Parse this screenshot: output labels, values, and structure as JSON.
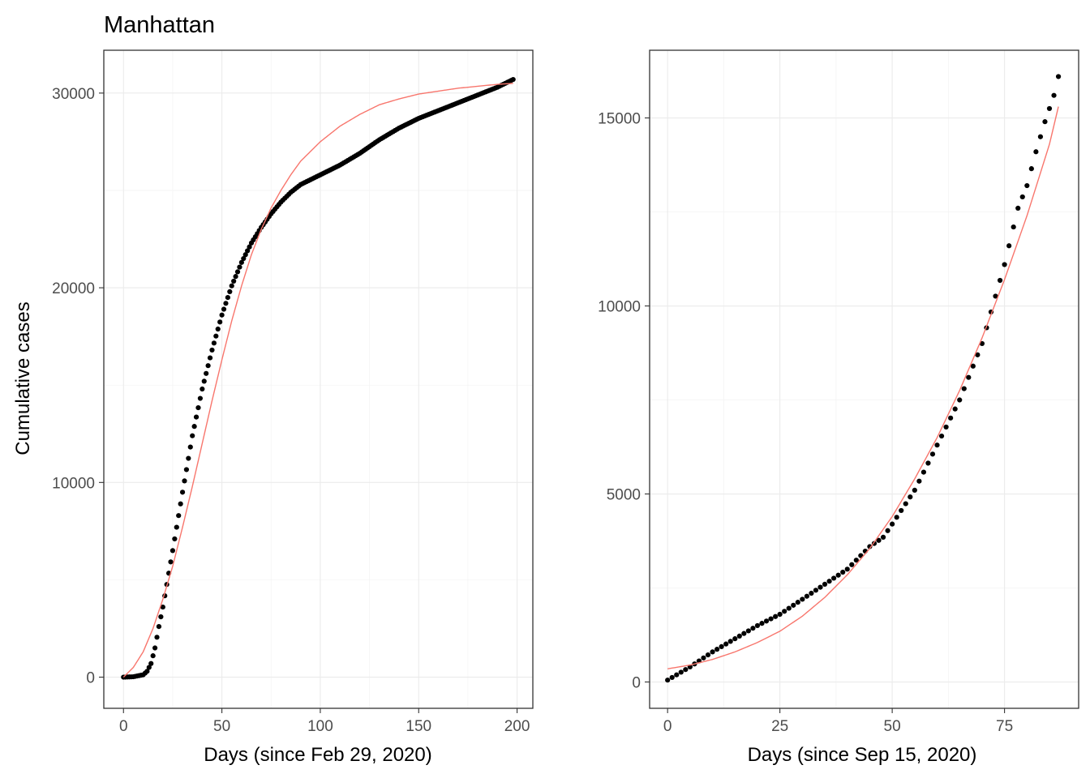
{
  "title": "Manhattan",
  "ylabel": "Cumulative cases",
  "colors": {
    "points": "#000000",
    "fit": "#f8766d"
  },
  "chart_data": [
    {
      "type": "scatter",
      "panel": "left",
      "xlabel": "Days (since Feb 29, 2020)",
      "ylabel": "Cumulative cases",
      "xlim": [
        -10,
        208
      ],
      "ylim": [
        -1600,
        32200
      ],
      "xticks": [
        0,
        50,
        100,
        150,
        200
      ],
      "yticks": [
        0,
        10000,
        20000,
        30000
      ],
      "xtick_labels": [
        "0",
        "50",
        "100",
        "150",
        "200"
      ],
      "ytick_labels": [
        "0",
        "10000",
        "20000",
        "30000"
      ],
      "x_range": [
        0,
        198
      ],
      "points_anchor": [
        [
          0,
          0
        ],
        [
          5,
          20
        ],
        [
          10,
          120
        ],
        [
          12,
          300
        ],
        [
          14,
          700
        ],
        [
          16,
          1500
        ],
        [
          18,
          2600
        ],
        [
          20,
          3600
        ],
        [
          25,
          6500
        ],
        [
          30,
          9500
        ],
        [
          35,
          12400
        ],
        [
          40,
          14800
        ],
        [
          45,
          16800
        ],
        [
          50,
          18600
        ],
        [
          55,
          20100
        ],
        [
          60,
          21300
        ],
        [
          65,
          22300
        ],
        [
          70,
          23100
        ],
        [
          75,
          23800
        ],
        [
          80,
          24400
        ],
        [
          85,
          24900
        ],
        [
          90,
          25300
        ],
        [
          100,
          25800
        ],
        [
          110,
          26300
        ],
        [
          120,
          26900
        ],
        [
          130,
          27600
        ],
        [
          140,
          28200
        ],
        [
          150,
          28700
        ],
        [
          160,
          29100
        ],
        [
          170,
          29500
        ],
        [
          180,
          29900
        ],
        [
          190,
          30300
        ],
        [
          198,
          30700
        ]
      ],
      "fit_anchor": [
        [
          0,
          0
        ],
        [
          5,
          500
        ],
        [
          10,
          1300
        ],
        [
          15,
          2500
        ],
        [
          20,
          4000
        ],
        [
          25,
          5700
        ],
        [
          30,
          7700
        ],
        [
          35,
          9800
        ],
        [
          40,
          12000
        ],
        [
          45,
          14200
        ],
        [
          50,
          16300
        ],
        [
          55,
          18300
        ],
        [
          60,
          20100
        ],
        [
          65,
          21700
        ],
        [
          70,
          23000
        ],
        [
          75,
          24100
        ],
        [
          80,
          25000
        ],
        [
          85,
          25800
        ],
        [
          90,
          26500
        ],
        [
          100,
          27500
        ],
        [
          110,
          28300
        ],
        [
          120,
          28900
        ],
        [
          130,
          29400
        ],
        [
          140,
          29700
        ],
        [
          150,
          29950
        ],
        [
          160,
          30100
        ],
        [
          170,
          30250
        ],
        [
          180,
          30350
        ],
        [
          190,
          30450
        ],
        [
          198,
          30500
        ]
      ]
    },
    {
      "type": "scatter",
      "panel": "right",
      "xlabel": "Days (since Sep 15, 2020)",
      "ylabel": "",
      "xlim": [
        -4,
        91.5
      ],
      "ylim": [
        -700,
        16800
      ],
      "xticks": [
        0,
        25,
        50,
        75
      ],
      "yticks": [
        0,
        5000,
        10000,
        15000
      ],
      "xtick_labels": [
        "0",
        "25",
        "50",
        "75"
      ],
      "ytick_labels": [
        "0",
        "5000",
        "10000",
        "15000"
      ],
      "x_range": [
        0,
        87
      ],
      "points_anchor": [
        [
          0,
          50
        ],
        [
          5,
          400
        ],
        [
          10,
          800
        ],
        [
          15,
          1150
        ],
        [
          20,
          1500
        ],
        [
          25,
          1800
        ],
        [
          30,
          2200
        ],
        [
          35,
          2600
        ],
        [
          40,
          3000
        ],
        [
          45,
          3600
        ],
        [
          48,
          3850
        ],
        [
          50,
          4200
        ],
        [
          55,
          5100
        ],
        [
          60,
          6300
        ],
        [
          65,
          7500
        ],
        [
          70,
          9000
        ],
        [
          75,
          11100
        ],
        [
          78,
          12600
        ],
        [
          80,
          13200
        ],
        [
          82,
          14100
        ],
        [
          84,
          14900
        ],
        [
          86,
          15600
        ],
        [
          87,
          16100
        ]
      ],
      "fit_anchor": [
        [
          0,
          350
        ],
        [
          5,
          450
        ],
        [
          10,
          600
        ],
        [
          15,
          800
        ],
        [
          20,
          1050
        ],
        [
          25,
          1350
        ],
        [
          30,
          1750
        ],
        [
          35,
          2250
        ],
        [
          40,
          2850
        ],
        [
          45,
          3550
        ],
        [
          50,
          4400
        ],
        [
          55,
          5400
        ],
        [
          60,
          6500
        ],
        [
          65,
          7750
        ],
        [
          70,
          9150
        ],
        [
          75,
          10700
        ],
        [
          80,
          12400
        ],
        [
          85,
          14300
        ],
        [
          87,
          15300
        ]
      ]
    }
  ]
}
